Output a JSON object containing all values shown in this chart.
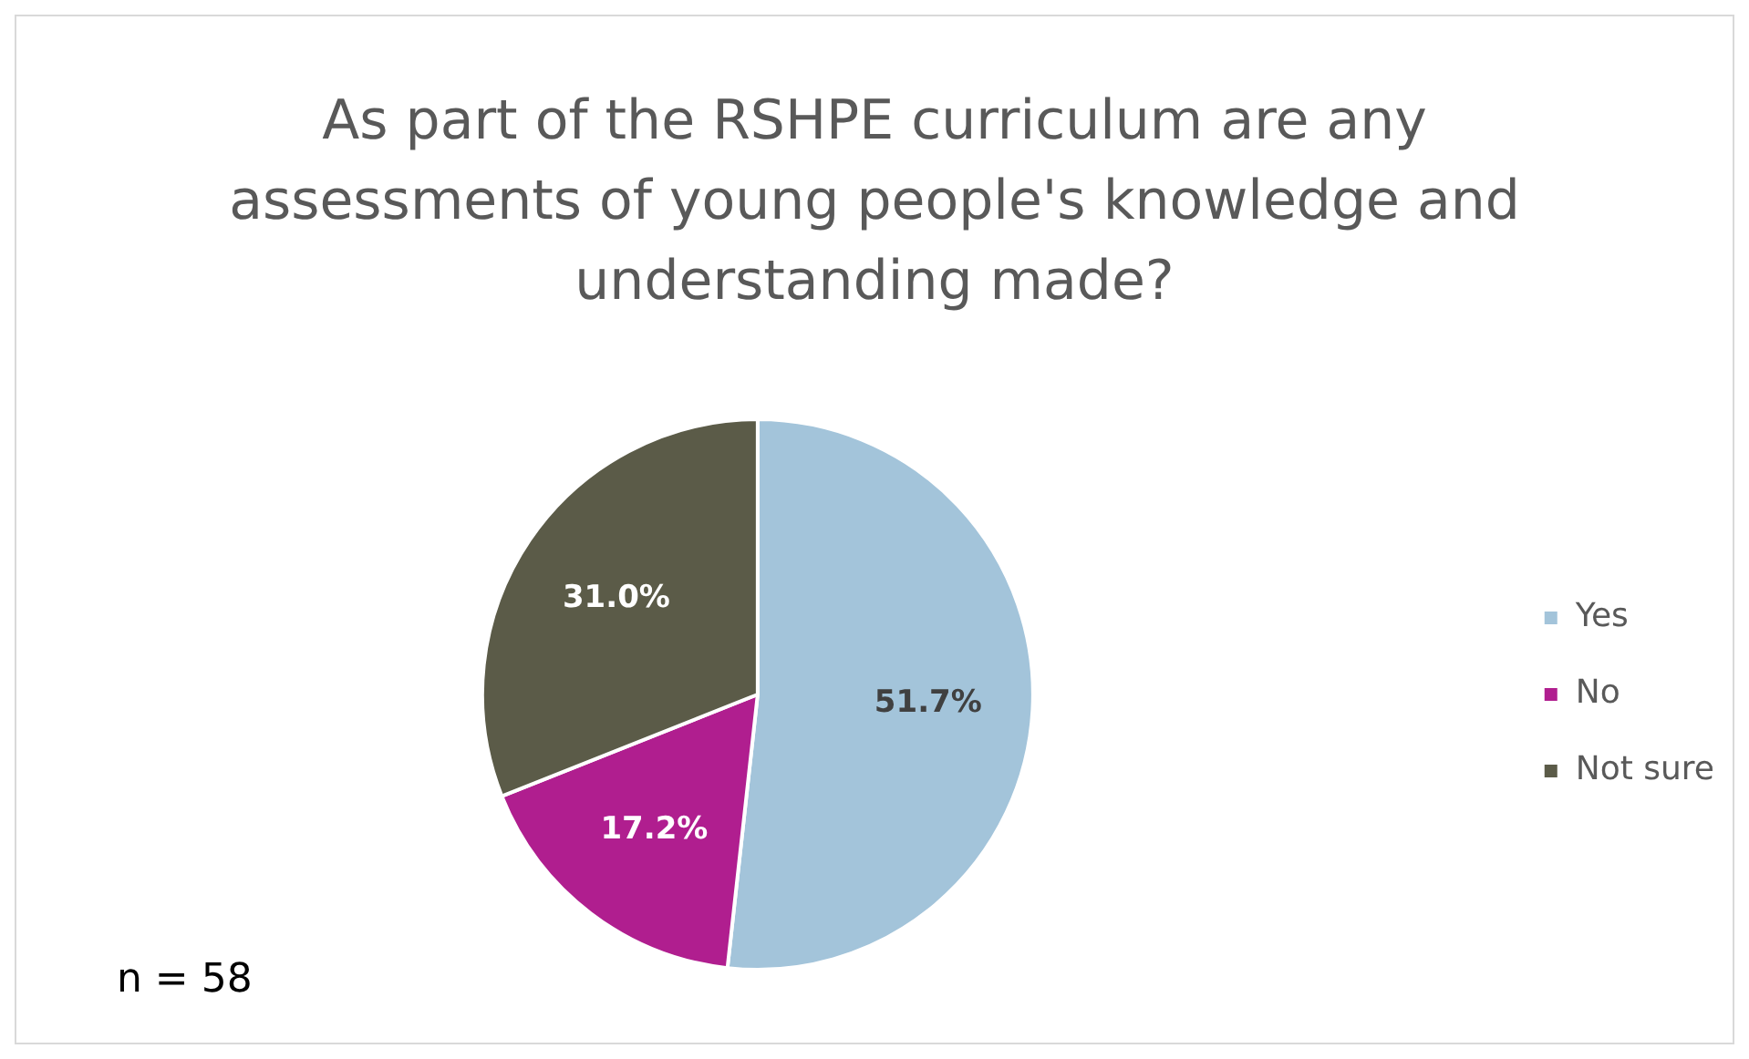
{
  "chart_data": {
    "type": "pie",
    "title": "As part of the RSHPE curriculum are any assessments of young people's knowledge and understanding made?",
    "categories": [
      "Yes",
      "No",
      "Not sure"
    ],
    "values": [
      51.7,
      17.2,
      31.0
    ],
    "value_labels": [
      "51.7%",
      "17.2%",
      "31.0%"
    ],
    "colors": [
      "#a3c4da",
      "#b01e8f",
      "#5b5b48"
    ],
    "legend": "right",
    "annotations": [
      "n = 58"
    ]
  }
}
